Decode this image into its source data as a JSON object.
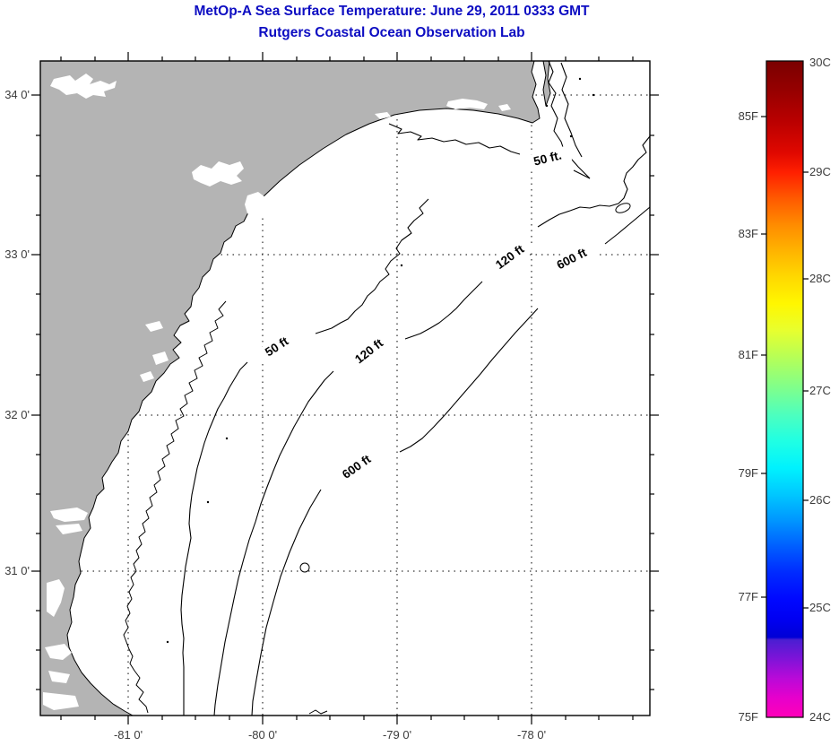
{
  "title": {
    "line1": "MetOp-A Sea Surface Temperature:  June 29, 2011 0333 GMT",
    "line2": "Rutgers Coastal Ocean Observation Lab",
    "color": "#0d0dc2"
  },
  "map": {
    "land_color": "#b4b4b4",
    "ocean_color": "#ffffff",
    "x_tick_labels": [
      "-81 0'",
      "-80 0'",
      "-79 0'",
      "-78 0'"
    ],
    "y_tick_labels": [
      "34 0'",
      "33 0'",
      "32 0'",
      "31 0'"
    ],
    "contour_labels": [
      "50 ft.",
      "120 ft",
      "600 ft",
      "50 ft",
      "120 ft",
      "600 ft"
    ],
    "contour_depths_ft": [
      50,
      120,
      600
    ],
    "lon_range": [
      -81.65,
      -77.12
    ],
    "lat_range": [
      30.07,
      34.21
    ],
    "grid": "dotted"
  },
  "colorbar": {
    "celsius_labels": [
      "30C",
      "29C",
      "28C",
      "27C",
      "26C",
      "25C",
      "24C"
    ],
    "fahrenheit_labels": [
      "85F",
      "83F",
      "81F",
      "79F",
      "77F",
      "75F"
    ],
    "range_celsius": [
      24,
      30
    ],
    "range_fahrenheit": [
      75,
      85
    ],
    "gradient": [
      {
        "p": 0,
        "c": "#7a0000"
      },
      {
        "p": 4,
        "c": "#930000"
      },
      {
        "p": 9,
        "c": "#b80000"
      },
      {
        "p": 14,
        "c": "#e00800"
      },
      {
        "p": 17,
        "c": "#ff2000"
      },
      {
        "p": 21,
        "c": "#ff5a00"
      },
      {
        "p": 25,
        "c": "#ff8c00"
      },
      {
        "p": 29,
        "c": "#ffb400"
      },
      {
        "p": 33,
        "c": "#ffd900"
      },
      {
        "p": 37,
        "c": "#fff700"
      },
      {
        "p": 41,
        "c": "#e8ff2e"
      },
      {
        "p": 45,
        "c": "#b8ff55"
      },
      {
        "p": 50,
        "c": "#7dff8e"
      },
      {
        "p": 54,
        "c": "#4cffbf"
      },
      {
        "p": 58,
        "c": "#1fffe4"
      },
      {
        "p": 62,
        "c": "#00f2fe"
      },
      {
        "p": 66,
        "c": "#00c8ff"
      },
      {
        "p": 70,
        "c": "#0096ff"
      },
      {
        "p": 74,
        "c": "#005eff"
      },
      {
        "p": 78,
        "c": "#002aff"
      },
      {
        "p": 82,
        "c": "#0008ff"
      },
      {
        "p": 85,
        "c": "#0000f2"
      },
      {
        "p": 87.8,
        "c": "#0000d6"
      },
      {
        "p": 88.2,
        "c": "#4b1ed2"
      },
      {
        "p": 91,
        "c": "#7d14d8"
      },
      {
        "p": 94,
        "c": "#b80ad8"
      },
      {
        "p": 97,
        "c": "#e600cc"
      },
      {
        "p": 100,
        "c": "#ff00b8"
      }
    ]
  }
}
